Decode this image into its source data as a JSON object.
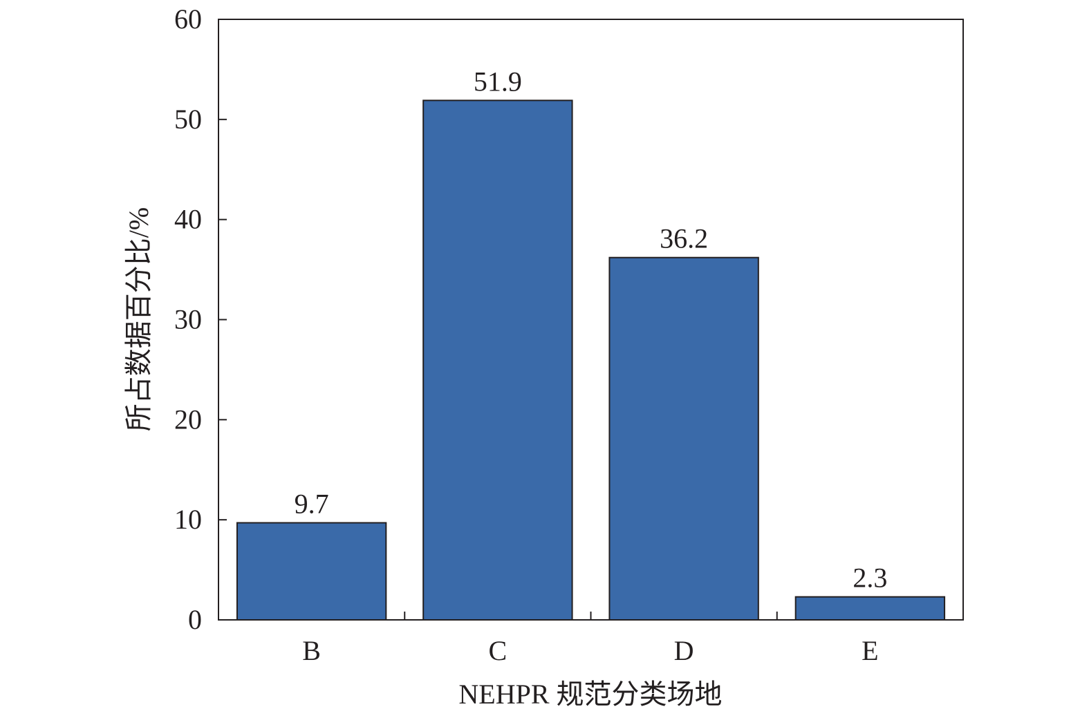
{
  "chart_data": {
    "type": "bar",
    "categories": [
      "B",
      "C",
      "D",
      "E"
    ],
    "values": [
      9.7,
      51.9,
      36.2,
      2.3
    ],
    "data_labels": [
      "9.7",
      "51.9",
      "36.2",
      "2.3"
    ],
    "xlabel": "NEHPR 规范分类场地",
    "ylabel": "所占数据百分比/%",
    "ylim": [
      0,
      60
    ],
    "yticks": [
      0,
      10,
      20,
      30,
      40,
      50,
      60
    ],
    "grid": false,
    "legend": "none",
    "bar_color": "#3a6aa9",
    "bar_edge_color": "#231f20",
    "axis_color": "#231f20"
  }
}
